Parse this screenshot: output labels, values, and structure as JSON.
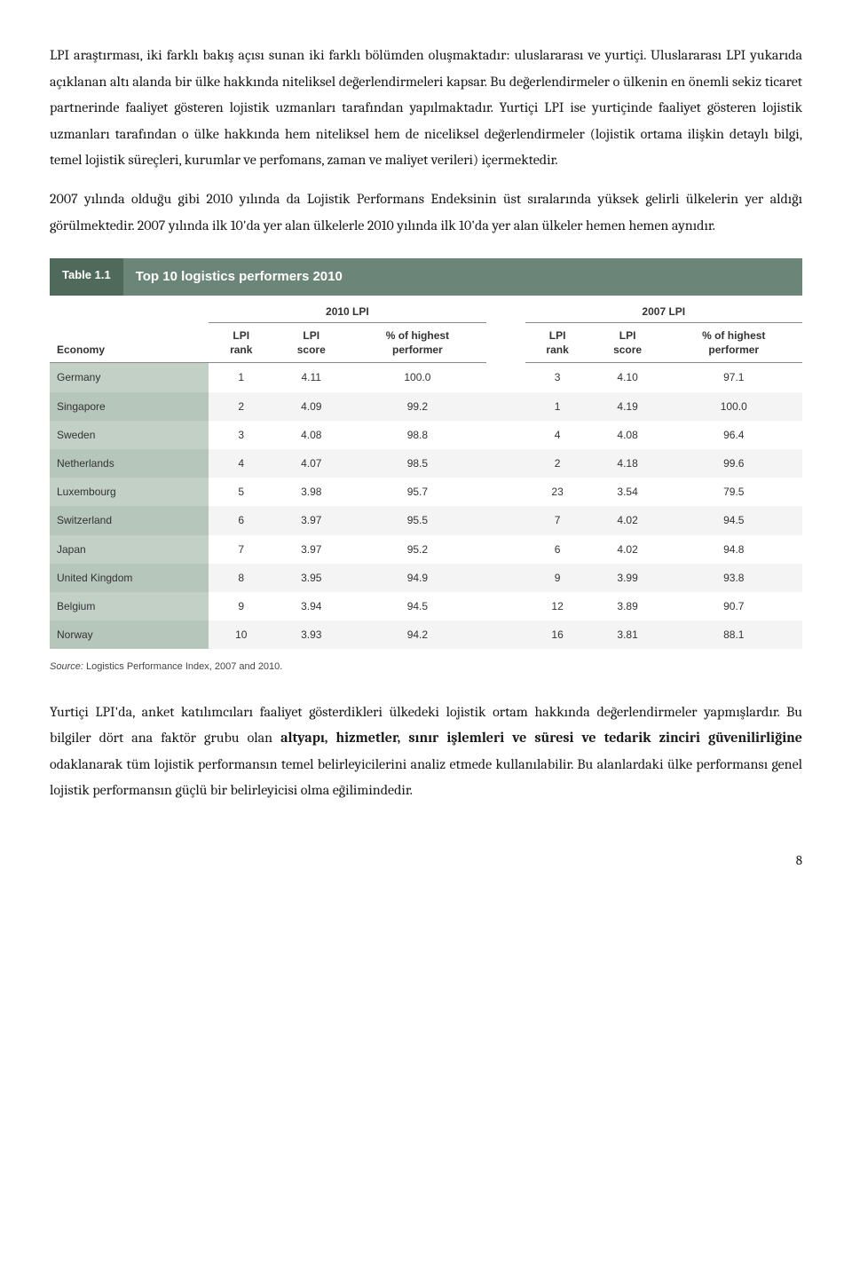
{
  "paragraphs": {
    "p1": "LPI araştırması, iki farklı bakış açısı sunan iki farklı bölümden oluşmaktadır: uluslararası ve yurtiçi. Uluslararası LPI yukarıda açıklanan altı alanda bir ülke hakkında niteliksel değerlendirmeleri kapsar. Bu değerlendirmeler o ülkenin en önemli sekiz ticaret partnerinde faaliyet gösteren lojistik uzmanları tarafından yapılmaktadır. Yurtiçi LPI ise yurtiçinde faaliyet gösteren lojistik uzmanları tarafından o ülke hakkında hem niteliksel hem de niceliksel değerlendirmeler (lojistik ortama ilişkin detaylı bilgi, temel lojistik süreçleri, kurumlar ve perfomans, zaman ve maliyet verileri) içermektedir.",
    "p2": "2007 yılında olduğu gibi 2010 yılında da Lojistik Performans Endeksinin üst sıralarında yüksek gelirli ülkelerin yer aldığı görülmektedir.  2007 yılında ilk 10'da yer alan ülkelerle 2010 yılında ilk 10'da yer alan ülkeler hemen hemen aynıdır.",
    "p3a": "Yurtiçi LPI'da, anket katılımcıları faaliyet gösterdikleri ülkedeki lojistik ortam hakkında değerlendirmeler yapmışlardır. Bu bilgiler dört ana faktör grubu olan ",
    "p3_bold": "altyapı, hizmetler, sınır işlemleri ve süresi ve tedarik zinciri güvenilirliğine",
    "p3b": " odaklanarak tüm lojistik performansın temel belirleyicilerini analiz etmede kullanılabilir. Bu alanlardaki ülke performansı genel lojistik performansın güçlü bir belirleyicisi olma eğilimindedir."
  },
  "table": {
    "badge": "Table 1.1",
    "title": "Top 10 logistics performers 2010",
    "groups": [
      "2010 LPI",
      "2007 LPI"
    ],
    "columns": {
      "economy": "Economy",
      "rank": "LPI\nrank",
      "score": "LPI\nscore",
      "pct": "% of highest\nperformer"
    },
    "rows": [
      {
        "economy": "Germany",
        "r10": "1",
        "s10": "4.11",
        "p10": "100.0",
        "r07": "3",
        "s07": "4.10",
        "p07": "97.1"
      },
      {
        "economy": "Singapore",
        "r10": "2",
        "s10": "4.09",
        "p10": "99.2",
        "r07": "1",
        "s07": "4.19",
        "p07": "100.0"
      },
      {
        "economy": "Sweden",
        "r10": "3",
        "s10": "4.08",
        "p10": "98.8",
        "r07": "4",
        "s07": "4.08",
        "p07": "96.4"
      },
      {
        "economy": "Netherlands",
        "r10": "4",
        "s10": "4.07",
        "p10": "98.5",
        "r07": "2",
        "s07": "4.18",
        "p07": "99.6"
      },
      {
        "economy": "Luxembourg",
        "r10": "5",
        "s10": "3.98",
        "p10": "95.7",
        "r07": "23",
        "s07": "3.54",
        "p07": "79.5"
      },
      {
        "economy": "Switzerland",
        "r10": "6",
        "s10": "3.97",
        "p10": "95.5",
        "r07": "7",
        "s07": "4.02",
        "p07": "94.5"
      },
      {
        "economy": "Japan",
        "r10": "7",
        "s10": "3.97",
        "p10": "95.2",
        "r07": "6",
        "s07": "4.02",
        "p07": "94.8"
      },
      {
        "economy": "United Kingdom",
        "r10": "8",
        "s10": "3.95",
        "p10": "94.9",
        "r07": "9",
        "s07": "3.99",
        "p07": "93.8"
      },
      {
        "economy": "Belgium",
        "r10": "9",
        "s10": "3.94",
        "p10": "94.5",
        "r07": "12",
        "s07": "3.89",
        "p07": "90.7"
      },
      {
        "economy": "Norway",
        "r10": "10",
        "s10": "3.93",
        "p10": "94.2",
        "r07": "16",
        "s07": "3.81",
        "p07": "88.1"
      }
    ],
    "source_label": "Source:",
    "source_text": " Logistics Performance Index, 2007 and 2010."
  },
  "page_number": "8"
}
